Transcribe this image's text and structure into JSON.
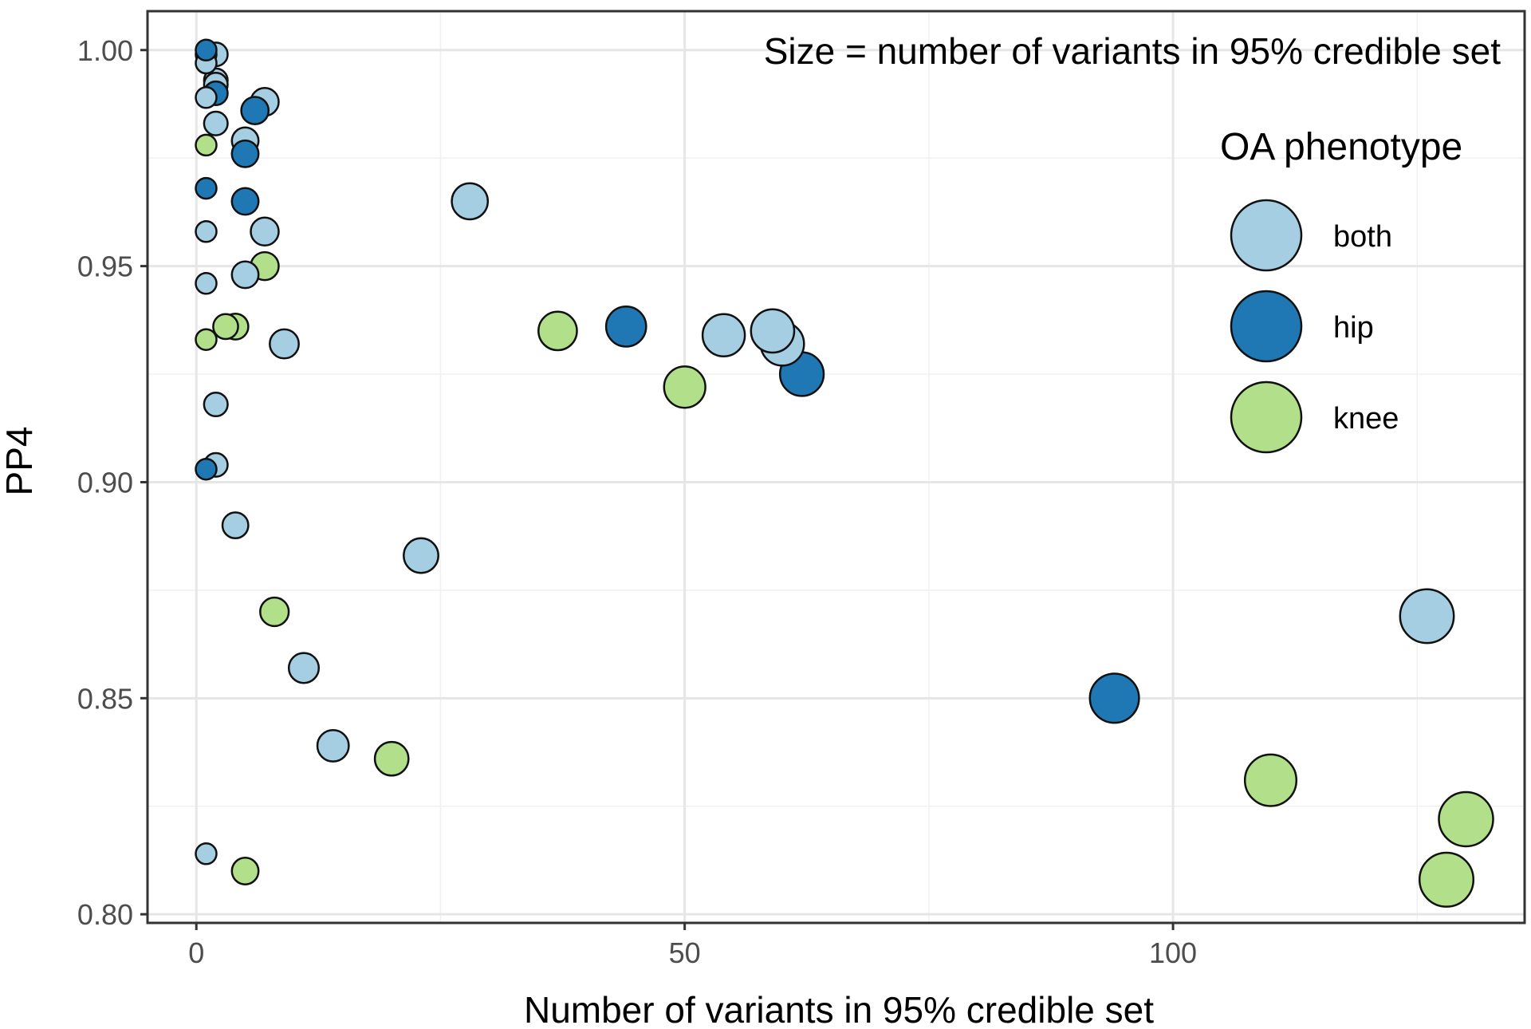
{
  "chart_data": {
    "type": "scatter",
    "title": "",
    "annotation": "Size = number of variants in 95% credible set",
    "xlabel": "Number of variants in 95% credible set",
    "ylabel": "PP4",
    "xlim": [
      -5,
      136
    ],
    "ylim": [
      0.798,
      1.009
    ],
    "x_ticks": [
      0,
      50,
      100
    ],
    "x_tick_labels": [
      "0",
      "50",
      "100"
    ],
    "y_ticks": [
      0.8,
      0.85,
      0.9,
      0.95,
      1.0
    ],
    "y_tick_labels": [
      "0.80",
      "0.85",
      "0.90",
      "0.95",
      "1.00"
    ],
    "x_minor_grid": [
      25,
      75,
      125
    ],
    "y_minor_grid": [
      0.825,
      0.875,
      0.925,
      0.975
    ],
    "grid": true,
    "legend": {
      "title": "OA phenotype",
      "position": "top-right",
      "items": [
        {
          "label": "both",
          "color": "#a6cee3"
        },
        {
          "label": "hip",
          "color": "#1f78b4"
        },
        {
          "label": "knee",
          "color": "#b2df8a"
        }
      ]
    },
    "colors": {
      "both": "#a6cee3",
      "hip": "#1f78b4",
      "knee": "#b2df8a",
      "outline": "#111111"
    },
    "series": [
      {
        "name": "both",
        "points": [
          {
            "x": 1,
            "y": 0.999
          },
          {
            "x": 2,
            "y": 0.999
          },
          {
            "x": 1,
            "y": 0.997
          },
          {
            "x": 2,
            "y": 0.993
          },
          {
            "x": 2,
            "y": 0.992
          },
          {
            "x": 1,
            "y": 0.989
          },
          {
            "x": 7,
            "y": 0.988
          },
          {
            "x": 2,
            "y": 0.983
          },
          {
            "x": 5,
            "y": 0.979
          },
          {
            "x": 1,
            "y": 0.958
          },
          {
            "x": 7,
            "y": 0.958
          },
          {
            "x": 28,
            "y": 0.965
          },
          {
            "x": 5,
            "y": 0.948
          },
          {
            "x": 1,
            "y": 0.946
          },
          {
            "x": 9,
            "y": 0.932
          },
          {
            "x": 2,
            "y": 0.918
          },
          {
            "x": 2,
            "y": 0.904
          },
          {
            "x": 4,
            "y": 0.89
          },
          {
            "x": 23,
            "y": 0.883
          },
          {
            "x": 11,
            "y": 0.857
          },
          {
            "x": 14,
            "y": 0.839
          },
          {
            "x": 1,
            "y": 0.814
          },
          {
            "x": 54,
            "y": 0.934
          },
          {
            "x": 59,
            "y": 0.935
          },
          {
            "x": 60,
            "y": 0.932
          },
          {
            "x": 126,
            "y": 0.869
          }
        ]
      },
      {
        "name": "hip",
        "points": [
          {
            "x": 1,
            "y": 1.0
          },
          {
            "x": 2,
            "y": 0.99
          },
          {
            "x": 6,
            "y": 0.986
          },
          {
            "x": 5,
            "y": 0.976
          },
          {
            "x": 1,
            "y": 0.968
          },
          {
            "x": 5,
            "y": 0.965
          },
          {
            "x": 1,
            "y": 0.903
          },
          {
            "x": 44,
            "y": 0.936
          },
          {
            "x": 62,
            "y": 0.925
          },
          {
            "x": 94,
            "y": 0.85
          }
        ]
      },
      {
        "name": "knee",
        "points": [
          {
            "x": 1,
            "y": 0.978
          },
          {
            "x": 7,
            "y": 0.95
          },
          {
            "x": 4,
            "y": 0.936
          },
          {
            "x": 3,
            "y": 0.936
          },
          {
            "x": 1,
            "y": 0.933
          },
          {
            "x": 8,
            "y": 0.87
          },
          {
            "x": 20,
            "y": 0.836
          },
          {
            "x": 5,
            "y": 0.81
          },
          {
            "x": 37,
            "y": 0.935
          },
          {
            "x": 50,
            "y": 0.922
          },
          {
            "x": 110,
            "y": 0.831
          },
          {
            "x": 130,
            "y": 0.822
          },
          {
            "x": 128,
            "y": 0.808
          }
        ]
      }
    ]
  }
}
